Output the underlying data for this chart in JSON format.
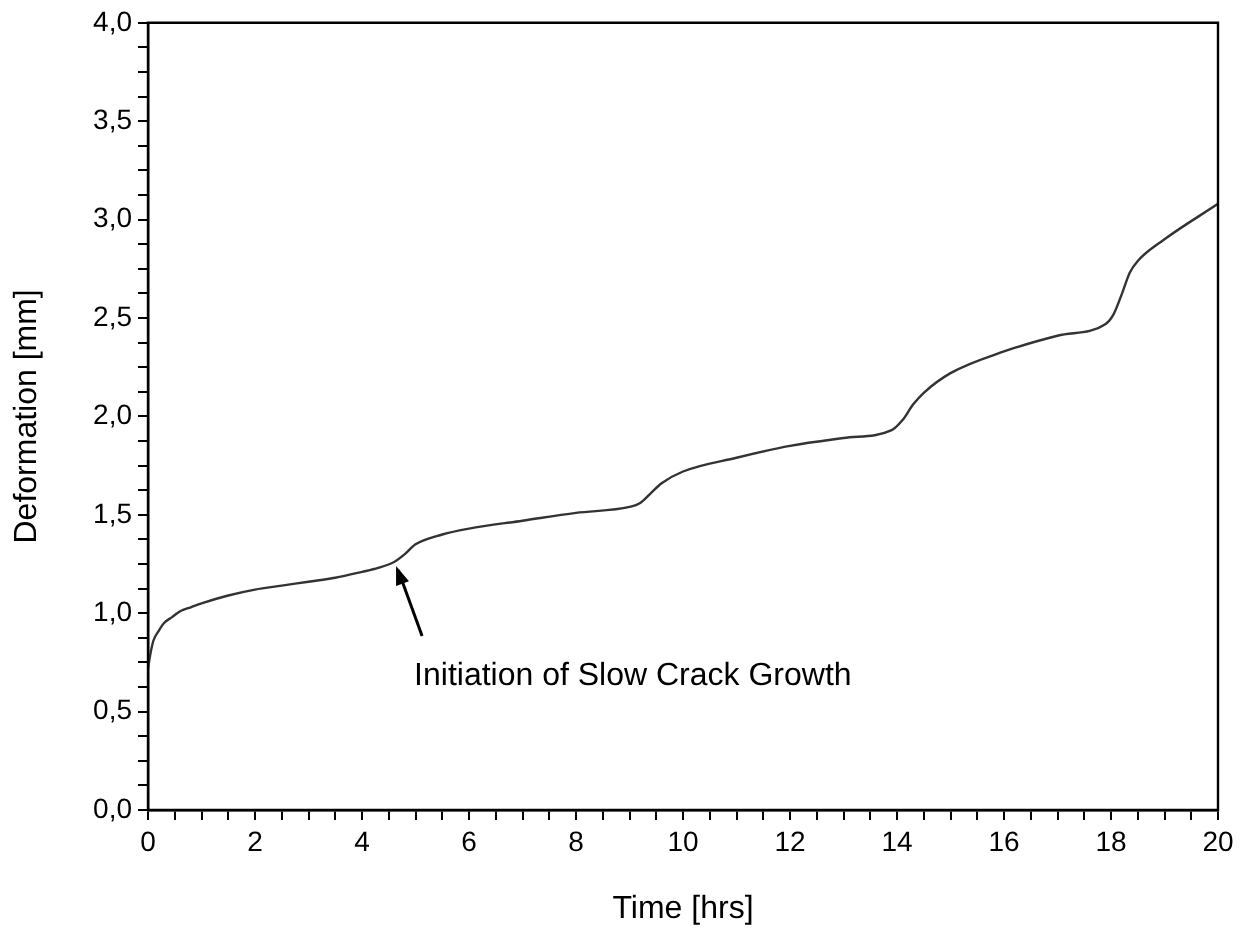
{
  "chart_data": {
    "type": "line",
    "xlabel": "Time [hrs]",
    "ylabel": "Deformation [mm]",
    "x": [
      0,
      0.05,
      0.1,
      0.2,
      0.3,
      0.45,
      0.6,
      0.8,
      1,
      1.5,
      2,
      2.5,
      3,
      3.5,
      4,
      4.3,
      4.6,
      4.8,
      5,
      5.5,
      6,
      7,
      8,
      9,
      9.2,
      9.4,
      9.6,
      10,
      11,
      12,
      13,
      13.9,
      14.1,
      14.3,
      14.5,
      15,
      16,
      17,
      17.9,
      18.05,
      18.2,
      18.35,
      18.5,
      19,
      20
    ],
    "series": [
      {
        "color": "#333333",
        "values": [
          0.72,
          0.8,
          0.86,
          0.91,
          0.95,
          0.98,
          1.01,
          1.03,
          1.05,
          1.09,
          1.12,
          1.14,
          1.16,
          1.18,
          1.21,
          1.23,
          1.26,
          1.3,
          1.35,
          1.4,
          1.43,
          1.47,
          1.51,
          1.54,
          1.56,
          1.61,
          1.66,
          1.72,
          1.79,
          1.85,
          1.89,
          1.93,
          1.98,
          2.06,
          2.12,
          2.22,
          2.33,
          2.41,
          2.47,
          2.52,
          2.62,
          2.73,
          2.79,
          2.9,
          3.08
        ]
      }
    ],
    "annotations": [
      {
        "text": "Initiation of Slow Crack Growth",
        "x": 4.6,
        "y": 1.26
      }
    ],
    "marker": "none",
    "line_style": "solid",
    "legend": false,
    "grid": false,
    "xlim": [
      0,
      20
    ],
    "xticks": [
      0,
      {
        "value": 0.5,
        "label": null
      },
      {
        "value": 1,
        "label": null
      },
      {
        "value": 1.5,
        "label": null
      },
      2,
      {
        "value": 2.5,
        "label": null
      },
      {
        "value": 3,
        "label": null
      },
      {
        "value": 3.5,
        "label": null
      },
      4,
      {
        "value": 4.5,
        "label": null
      },
      {
        "value": 5,
        "label": null
      },
      {
        "value": 5.5,
        "label": null
      },
      6,
      {
        "value": 6.5,
        "label": null
      },
      {
        "value": 7,
        "label": null
      },
      {
        "value": 7.5,
        "label": null
      },
      8,
      {
        "value": 8.5,
        "label": null
      },
      {
        "value": 9,
        "label": null
      },
      {
        "value": 9.5,
        "label": null
      },
      10,
      {
        "value": 10.5,
        "label": null
      },
      {
        "value": 11,
        "label": null
      },
      {
        "value": 11.5,
        "label": null
      },
      12,
      {
        "value": 12.5,
        "label": null
      },
      {
        "value": 13,
        "label": null
      },
      {
        "value": 13.5,
        "label": null
      },
      14,
      {
        "value": 14.5,
        "label": null
      },
      {
        "value": 15,
        "label": null
      },
      {
        "value": 15.5,
        "label": null
      },
      16,
      {
        "value": 16.5,
        "label": null
      },
      {
        "value": 17,
        "label": null
      },
      {
        "value": 17.5,
        "label": null
      },
      18,
      {
        "value": 18.5,
        "label": null
      },
      {
        "value": 19,
        "label": null
      },
      {
        "value": 19.5,
        "label": null
      },
      20
    ],
    "ylim": [
      0,
      4
    ],
    "yticks": [
      {
        "value": 0,
        "label": "0,0"
      },
      {
        "value": 0.125,
        "label": null
      },
      {
        "value": 0.25,
        "label": null
      },
      {
        "value": 0.375,
        "label": null
      },
      {
        "value": 0.5,
        "label": "0,5"
      },
      {
        "value": 0.625,
        "label": null
      },
      {
        "value": 0.75,
        "label": null
      },
      {
        "value": 0.875,
        "label": null
      },
      {
        "value": 1,
        "label": "1,0"
      },
      {
        "value": 1.125,
        "label": null
      },
      {
        "value": 1.25,
        "label": null
      },
      {
        "value": 1.375,
        "label": null
      },
      {
        "value": 1.5,
        "label": "1,5"
      },
      {
        "value": 1.625,
        "label": null
      },
      {
        "value": 1.75,
        "label": null
      },
      {
        "value": 1.875,
        "label": null
      },
      {
        "value": 2,
        "label": "2,0"
      },
      {
        "value": 2.125,
        "label": null
      },
      {
        "value": 2.25,
        "label": null
      },
      {
        "value": 2.375,
        "label": null
      },
      {
        "value": 2.5,
        "label": "2,5"
      },
      {
        "value": 2.625,
        "label": null
      },
      {
        "value": 2.75,
        "label": null
      },
      {
        "value": 2.875,
        "label": null
      },
      {
        "value": 3,
        "label": "3,0"
      },
      {
        "value": 3.125,
        "label": null
      },
      {
        "value": 3.25,
        "label": null
      },
      {
        "value": 3.375,
        "label": null
      },
      {
        "value": 3.5,
        "label": "3,5"
      },
      {
        "value": 3.625,
        "label": null
      },
      {
        "value": 3.75,
        "label": null
      },
      {
        "value": 3.875,
        "label": null
      },
      {
        "value": 4,
        "label": "4,0"
      }
    ]
  }
}
